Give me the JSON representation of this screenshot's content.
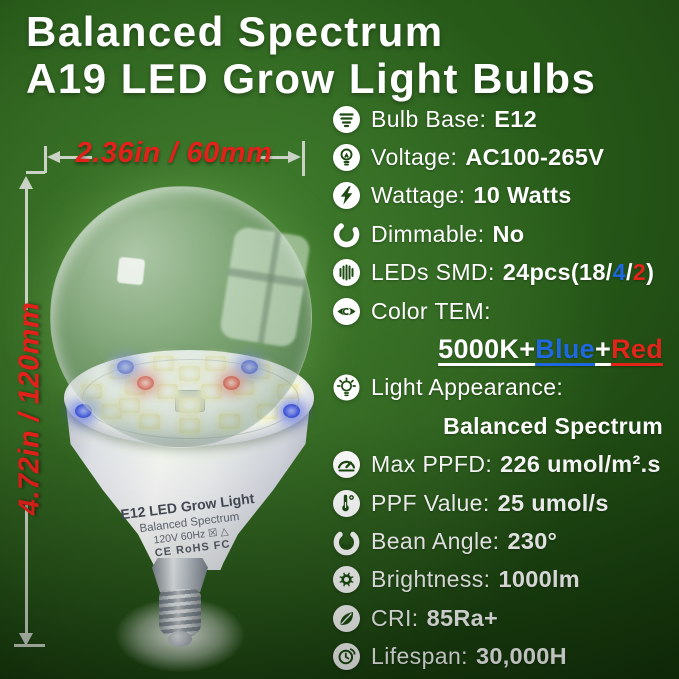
{
  "title": {
    "line1": "Balanced Spectrum",
    "line2": "A19 LED Grow Light Bulbs"
  },
  "dimension_labels": {
    "width": "2.36in / 60mm",
    "height": "4.72in / 120mm"
  },
  "bulb_print": {
    "line1": "E12 LED Grow Light",
    "line2": "Balanced Spectrum",
    "line3": "120V 60Hz ☒ △",
    "line4": "CE RoHS FC"
  },
  "colors": {
    "background_green": "#2e6720",
    "dimension_red": "#e4201a",
    "accent_blue": "#1f68e0",
    "accent_red": "#e2241b",
    "arrow_gray": "#c9d2c4"
  },
  "specs": [
    {
      "icon": "bulb-base-icon",
      "label": "Bulb Base:",
      "value": [
        {
          "text": "E12"
        }
      ]
    },
    {
      "icon": "light-bulb-icon",
      "label": "Voltage:",
      "value": [
        {
          "text": "AC100-265V"
        }
      ]
    },
    {
      "icon": "lightning-icon",
      "label": "Wattage:",
      "value": [
        {
          "text": "10 Watts"
        }
      ]
    },
    {
      "icon": "dimmer-icon",
      "label": "Dimmable:",
      "value": [
        {
          "text": "No"
        }
      ]
    },
    {
      "icon": "led-chip-icon",
      "label": "LEDs SMD:",
      "value": [
        {
          "text": "24pcs(18/"
        },
        {
          "text": "4",
          "color": "#1f68e0"
        },
        {
          "text": "/"
        },
        {
          "text": "2",
          "color": "#e2241b"
        },
        {
          "text": ")"
        }
      ]
    },
    {
      "icon": "eye-icon",
      "label": "Color TEM:",
      "value": [],
      "subline": [
        {
          "text": "5000K+",
          "underline": true
        },
        {
          "text": "Blue",
          "color": "#1f68e0",
          "underline": true
        },
        {
          "text": "+",
          "underline": true
        },
        {
          "text": "Red",
          "color": "#e2241b",
          "underline": true
        }
      ]
    },
    {
      "icon": "glowing-bulb-icon",
      "label": "Light Appearance:",
      "value": [],
      "subline": [
        {
          "text": "Balanced Spectrum"
        }
      ]
    },
    {
      "icon": "gauge-icon",
      "label": "Max PPFD:",
      "value": [
        {
          "text": "226 umol/m².s"
        }
      ]
    },
    {
      "icon": "thermometer-icon",
      "label": "PPF Value:",
      "value": [
        {
          "text": "25 umol/s"
        }
      ]
    },
    {
      "icon": "beam-angle-icon",
      "label": "Bean Angle:",
      "value": [
        {
          "text": "230°"
        }
      ]
    },
    {
      "icon": "sun-icon",
      "label": "Brightness:",
      "value": [
        {
          "text": "1000lm"
        }
      ]
    },
    {
      "icon": "leaf-icon",
      "label": "CRI:",
      "value": [
        {
          "text": "85Ra+"
        }
      ]
    },
    {
      "icon": "clock-icon",
      "label": "Lifespan:",
      "value": [
        {
          "text": "30,000H"
        }
      ]
    }
  ]
}
